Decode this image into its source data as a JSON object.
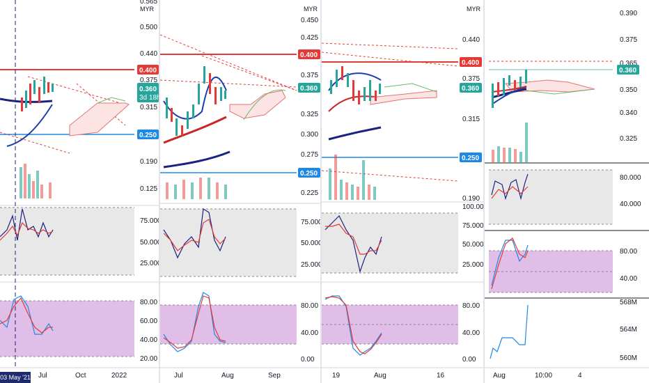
{
  "colors": {
    "red": "#e53935",
    "teal": "#26a69a",
    "blue": "#1e88e5",
    "navy": "#1a237e",
    "stoch_fill": "#e1bee7",
    "rsi_fill": "#e8e8e8",
    "darkred": "#c62828"
  },
  "panes": [
    {
      "unit": "MYR",
      "top_axis": [
        "0.565",
        "0.500",
        "0.440",
        "0.375",
        "0.315",
        "0.250",
        "0.190",
        "0.125"
      ],
      "price_badges": [
        {
          "label": "0.400",
          "color": "red"
        },
        {
          "label": "0.360",
          "color": "teal"
        },
        {
          "label": "3d 18h",
          "color": "teal"
        },
        {
          "label": "0.250",
          "color": "blue"
        }
      ],
      "rsi_axis": [
        "75.000",
        "50.000",
        "25.000"
      ],
      "stoch_axis": [
        "80.00",
        "60.00",
        "40.00",
        "20.00"
      ],
      "x_axis": [
        "Jul",
        "Oct",
        "2022"
      ],
      "date_badge": "03 May '21"
    },
    {
      "unit": "MYR",
      "top_axis": [
        "0.450",
        "0.425",
        "0.400",
        "0.375",
        "0.350",
        "0.325",
        "0.300",
        "0.275",
        "0.250",
        "0.225"
      ],
      "price_badges": [
        {
          "label": "0.400",
          "color": "red"
        },
        {
          "label": "0.360",
          "color": "teal"
        },
        {
          "label": "0.250",
          "color": "blue"
        }
      ],
      "rsi_axis": [
        "75.000",
        "50.000",
        "25.000"
      ],
      "stoch_axis": [
        "80.00",
        "40.00",
        "0.00"
      ],
      "x_axis": [
        "Jul",
        "Aug",
        "Sep"
      ]
    },
    {
      "unit": "MYR",
      "top_axis": [
        "0.440",
        "0.375",
        "0.315",
        "0.190"
      ],
      "price_badges": [
        {
          "label": "0.400",
          "color": "red"
        },
        {
          "label": "0.360",
          "color": "teal"
        },
        {
          "label": "0.250",
          "color": "blue"
        }
      ],
      "rsi_axis": [
        "100.000",
        "75.000",
        "50.000",
        "25.000"
      ],
      "stoch_axis": [
        "80.00",
        "40.00",
        "0.00"
      ],
      "x_axis": [
        "19",
        "Aug",
        "16"
      ]
    },
    {
      "unit": "MYR",
      "top_axis": [
        "0.390",
        "0.375",
        "0.365",
        "0.350",
        "0.340",
        "0.325"
      ],
      "price_badges": [
        {
          "label": "0.360",
          "color": "teal"
        }
      ],
      "rsi_axis": [
        "80.000",
        "40.000"
      ],
      "stoch_axis": [
        "80.00",
        "40.00"
      ],
      "vol_axis": [
        "568M",
        "564M",
        "560M"
      ],
      "x_axis": [
        "Aug",
        "10:00",
        "4"
      ]
    }
  ]
}
